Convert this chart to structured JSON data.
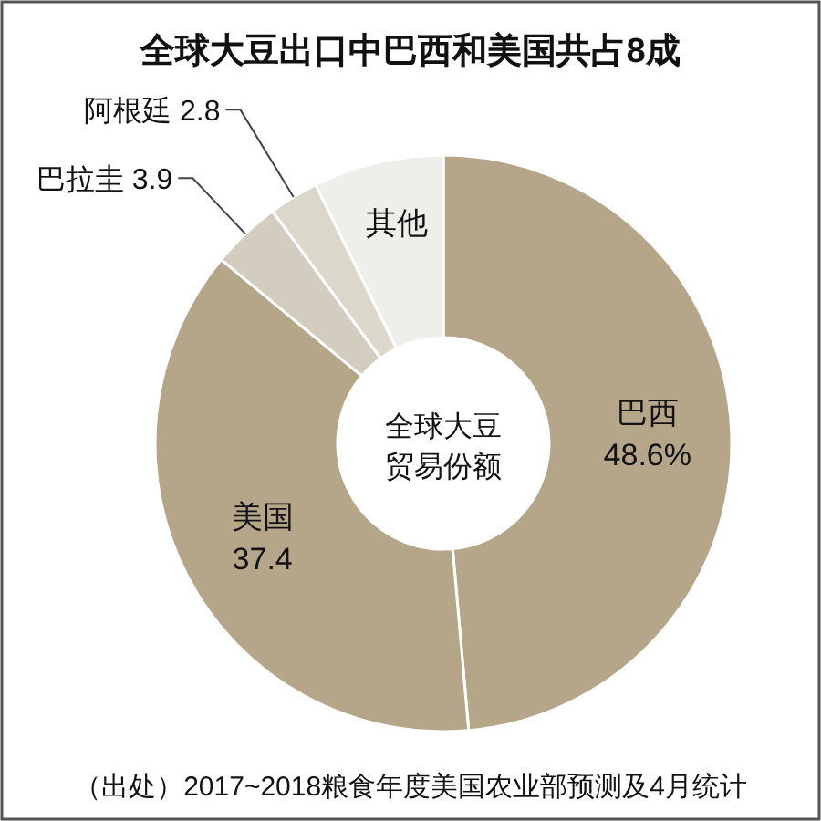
{
  "chart_data": {
    "type": "donut",
    "title": "全球大豆出口中巴西和美国共占8成",
    "categories": [
      "巴西",
      "美国",
      "巴拉圭",
      "阿根廷",
      "其他"
    ],
    "values": [
      48.6,
      37.4,
      3.9,
      2.8,
      7.3
    ],
    "value_labels": [
      "48.6%",
      "37.4",
      "3.9",
      "2.8",
      null
    ],
    "colors": [
      "#b5a68a",
      "#b5a68a",
      "#d3cdbf",
      "#dcd7cb",
      "#eeeeeb"
    ],
    "annotations": [
      "全球大豆贸易份额",
      "（出处）2017~2018粮食年度美国农业部预测及4月统计"
    ]
  }
}
